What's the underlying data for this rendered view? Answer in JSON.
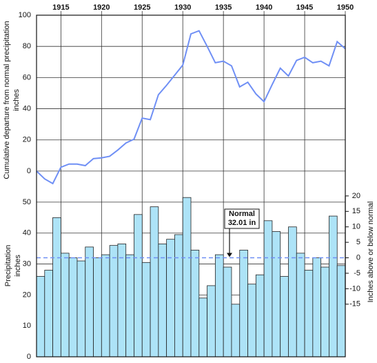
{
  "chart_data": [
    {
      "type": "line",
      "ylabel": [
        "Cumulative departure from normal precipitation",
        "inches"
      ],
      "x": [
        1912,
        1913,
        1914,
        1915,
        1916,
        1917,
        1918,
        1919,
        1920,
        1921,
        1922,
        1923,
        1924,
        1925,
        1926,
        1927,
        1928,
        1929,
        1930,
        1931,
        1932,
        1933,
        1934,
        1935,
        1936,
        1937,
        1938,
        1939,
        1940,
        1941,
        1942,
        1943,
        1944,
        1945,
        1946,
        1947,
        1948,
        1949,
        1950
      ],
      "values": [
        0,
        -5,
        -8,
        2.5,
        4.5,
        4.5,
        3.5,
        8,
        8.5,
        9.5,
        13.5,
        18,
        20.5,
        34,
        33,
        49,
        55,
        61.5,
        68,
        88,
        90,
        80,
        69.5,
        70.5,
        67.5,
        54,
        57,
        49.5,
        44.5,
        55.5,
        66,
        61,
        71,
        73,
        69.5,
        70.5,
        67.5,
        83,
        78.5
      ],
      "color": "#6f8ff5",
      "xlim": [
        1912,
        1950
      ],
      "xticks": [
        1915,
        1920,
        1925,
        1930,
        1935,
        1940,
        1945,
        1950
      ],
      "ylim": [
        -10,
        100
      ],
      "yticks": [
        0,
        20,
        40,
        60,
        80,
        100
      ],
      "grid": true
    },
    {
      "type": "bar",
      "ylabel": [
        "Precipitation",
        "inches"
      ],
      "y2label": "Inches above or below normal",
      "x": [
        1912,
        1913,
        1914,
        1915,
        1916,
        1917,
        1918,
        1919,
        1920,
        1921,
        1922,
        1923,
        1924,
        1925,
        1926,
        1927,
        1928,
        1929,
        1930,
        1931,
        1932,
        1933,
        1934,
        1935,
        1936,
        1937,
        1938,
        1939,
        1940,
        1941,
        1942,
        1943,
        1944,
        1945,
        1946,
        1947,
        1948,
        1949
      ],
      "values": [
        26,
        28,
        45,
        33.5,
        32,
        31,
        35.5,
        32,
        33,
        36,
        36.5,
        33,
        46,
        30.5,
        48.5,
        36.5,
        38,
        39.5,
        51.5,
        34.5,
        19,
        23,
        33,
        29,
        17,
        34.5,
        23.5,
        26.5,
        44,
        40.5,
        26,
        42,
        33.5,
        28,
        32,
        29,
        45.5,
        29.5
      ],
      "color": "#ade3f7",
      "xlim": [
        1912,
        1950
      ],
      "ylim": [
        0,
        55
      ],
      "yticks": [
        0,
        10,
        20,
        30,
        40,
        50
      ],
      "y2lim": [
        -32.01,
        22.99
      ],
      "y2ticks": [
        -15,
        -10,
        -5,
        0,
        5,
        10,
        15,
        20
      ],
      "normal": 32.01,
      "annotation": [
        "Normal",
        "32.01 in"
      ],
      "grid": true
    }
  ]
}
